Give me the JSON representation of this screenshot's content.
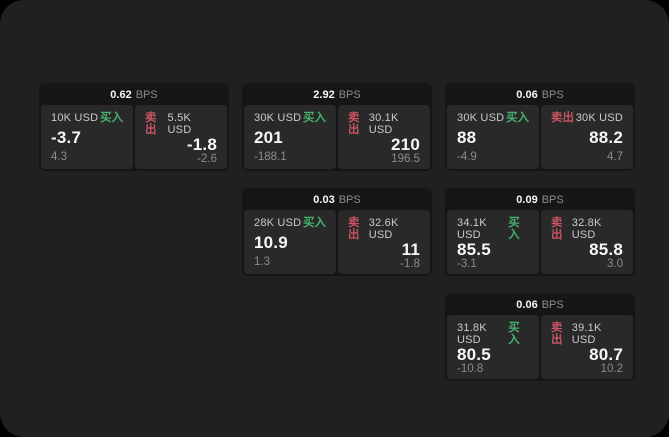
{
  "labels": {
    "buy": "买入",
    "sell": "卖出",
    "bps_unit": "BPS"
  },
  "colors": {
    "buy_green": "#47b16d",
    "sell_red": "#c95360",
    "page_bg": "#1f2021",
    "card_bg": "#161617",
    "panel_bg": "#29292a"
  },
  "cards": [
    {
      "row": 1,
      "col": 1,
      "bps": "0.62",
      "bid": {
        "size": "10K USD",
        "price": "-3.7",
        "delta": "4.3"
      },
      "ask": {
        "size": "5.5K USD",
        "price": "-1.8",
        "delta": "-2.6"
      }
    },
    {
      "row": 1,
      "col": 2,
      "bps": "2.92",
      "bid": {
        "size": "30K USD",
        "price": "201",
        "delta": "-188.1"
      },
      "ask": {
        "size": "30.1K USD",
        "price": "210",
        "delta": "196.5"
      }
    },
    {
      "row": 1,
      "col": 3,
      "bps": "0.06",
      "bid": {
        "size": "30K USD",
        "price": "88",
        "delta": "-4.9"
      },
      "ask": {
        "size": "30K USD",
        "price": "88.2",
        "delta": "4.7"
      }
    },
    {
      "row": 2,
      "col": 2,
      "bps": "0.03",
      "bid": {
        "size": "28K USD",
        "price": "10.9",
        "delta": "1.3"
      },
      "ask": {
        "size": "32.6K USD",
        "price": "11",
        "delta": "-1.8"
      }
    },
    {
      "row": 2,
      "col": 3,
      "bps": "0.09",
      "bid": {
        "size": "34.1K USD",
        "price": "85.5",
        "delta": "-3.1"
      },
      "ask": {
        "size": "32.8K USD",
        "price": "85.8",
        "delta": "3.0"
      }
    },
    {
      "row": 3,
      "col": 3,
      "bps": "0.06",
      "bid": {
        "size": "31.8K USD",
        "price": "80.5",
        "delta": "-10.8"
      },
      "ask": {
        "size": "39.1K USD",
        "price": "80.7",
        "delta": "10.2"
      }
    }
  ]
}
